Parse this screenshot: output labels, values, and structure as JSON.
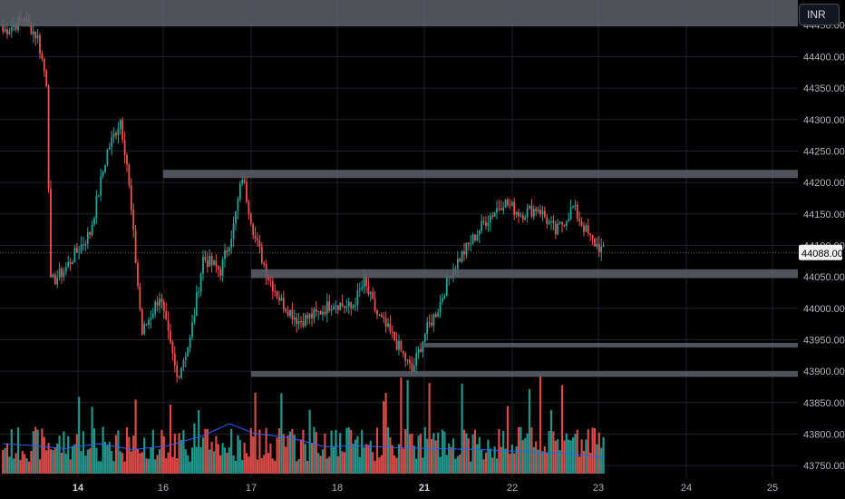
{
  "currency_button": {
    "label": "INR"
  },
  "colors": {
    "up": "#26a69a",
    "down": "#ef5350",
    "zone": "#5d606b",
    "ma_line": "#2962ff",
    "grid": "#1e222d",
    "badge": "#f2f2f2"
  },
  "chart_data": {
    "type": "candlestick",
    "y_axis": {
      "ylim": [
        43730,
        44490
      ],
      "ticks": [
        44450,
        44400,
        44350,
        44300,
        44250,
        44200,
        44150,
        44100,
        44050,
        44000,
        43950,
        43900,
        43850,
        43800,
        43750
      ],
      "tick_labels": [
        "44450.00",
        "44400.00",
        "44350.00",
        "44300.00",
        "44250.00",
        "44200.00",
        "44150.00",
        "44100.00",
        "44050.00",
        "44000.00",
        "43950.00",
        "43900.00",
        "43850.00",
        "43800.00",
        "43750.00"
      ]
    },
    "x_axis": {
      "labels": [
        "14",
        "16",
        "17",
        "18",
        "21",
        "22",
        "23",
        "24",
        "25"
      ],
      "bold_labels": [
        "14",
        "21"
      ]
    },
    "last_price": {
      "value": 44088,
      "label": "44088.00"
    },
    "zones": [
      {
        "y_top": 44490,
        "y_bottom": 44448,
        "x_start": "start"
      },
      {
        "y_top": 44220,
        "y_bottom": 44207,
        "x_start": "16"
      },
      {
        "y_top": 44062,
        "y_bottom": 44048,
        "x_start": "17"
      },
      {
        "y_top": 43945,
        "y_bottom": 43940,
        "x_start": "21"
      },
      {
        "y_top": 43900,
        "y_bottom": 43891,
        "x_start": "17"
      }
    ],
    "anchors": [
      [
        0,
        44440
      ],
      [
        10,
        44460
      ],
      [
        16,
        44430
      ],
      [
        20,
        44360
      ],
      [
        22,
        44040
      ],
      [
        28,
        44060
      ],
      [
        36,
        44100
      ],
      [
        40,
        44120
      ],
      [
        48,
        44250
      ],
      [
        54,
        44300
      ],
      [
        57,
        44230
      ],
      [
        64,
        43960
      ],
      [
        72,
        44020
      ],
      [
        80,
        43890
      ],
      [
        86,
        43950
      ],
      [
        92,
        44080
      ],
      [
        100,
        44060
      ],
      [
        106,
        44130
      ],
      [
        110,
        44210
      ],
      [
        116,
        44110
      ],
      [
        122,
        44050
      ],
      [
        128,
        44010
      ],
      [
        136,
        43980
      ],
      [
        144,
        43990
      ],
      [
        152,
        44010
      ],
      [
        160,
        44000
      ],
      [
        166,
        44040
      ],
      [
        172,
        43990
      ],
      [
        180,
        43950
      ],
      [
        188,
        43900
      ],
      [
        194,
        43960
      ],
      [
        200,
        44000
      ],
      [
        206,
        44060
      ],
      [
        214,
        44100
      ],
      [
        222,
        44140
      ],
      [
        230,
        44170
      ],
      [
        238,
        44150
      ],
      [
        246,
        44160
      ],
      [
        254,
        44120
      ],
      [
        262,
        44160
      ],
      [
        270,
        44110
      ],
      [
        276,
        44090
      ]
    ],
    "volume_ma_anchors": [
      [
        0,
        0.3
      ],
      [
        14,
        0.28
      ],
      [
        28,
        0.25
      ],
      [
        44,
        0.3
      ],
      [
        60,
        0.24
      ],
      [
        76,
        0.28
      ],
      [
        92,
        0.38
      ],
      [
        104,
        0.5
      ],
      [
        116,
        0.4
      ],
      [
        132,
        0.36
      ],
      [
        148,
        0.27
      ],
      [
        164,
        0.28
      ],
      [
        180,
        0.26
      ],
      [
        200,
        0.25
      ],
      [
        220,
        0.24
      ],
      [
        240,
        0.22
      ],
      [
        260,
        0.2
      ],
      [
        276,
        0.16
      ]
    ]
  }
}
